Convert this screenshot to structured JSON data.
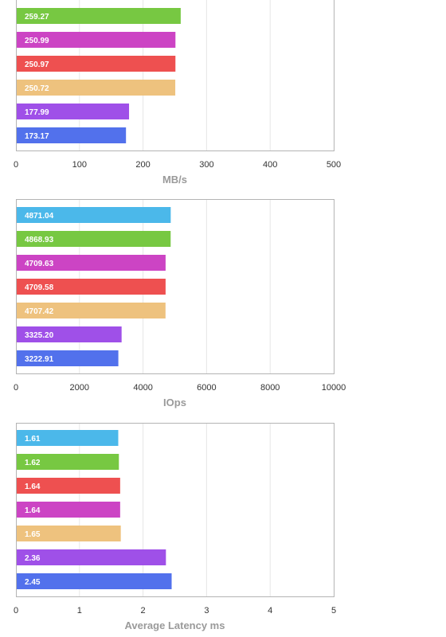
{
  "chart_data": [
    {
      "type": "bar",
      "orientation": "horizontal",
      "xlabel": "MB/s",
      "xlim": [
        0,
        500
      ],
      "xticks": [
        "0",
        "100",
        "200",
        "300",
        "400",
        "500"
      ],
      "grid": true,
      "bars": [
        {
          "label": "259.27",
          "value": 259.27,
          "color": "#77c842"
        },
        {
          "label": "250.99",
          "value": 250.99,
          "color": "#cc44c4"
        },
        {
          "label": "250.97",
          "value": 250.97,
          "color": "#ee5050"
        },
        {
          "label": "250.72",
          "value": 250.72,
          "color": "#eec27e"
        },
        {
          "label": "177.99",
          "value": 177.99,
          "color": "#9f50e8"
        },
        {
          "label": "173.17",
          "value": 173.17,
          "color": "#5271ec"
        }
      ]
    },
    {
      "type": "bar",
      "orientation": "horizontal",
      "xlabel": "IOps",
      "xlim": [
        0,
        10000
      ],
      "xticks": [
        "0",
        "2000",
        "4000",
        "6000",
        "8000",
        "10000"
      ],
      "grid": true,
      "bars": [
        {
          "label": "4871.04",
          "value": 4871.04,
          "color": "#4bb8ea"
        },
        {
          "label": "4868.93",
          "value": 4868.93,
          "color": "#77c842"
        },
        {
          "label": "4709.63",
          "value": 4709.63,
          "color": "#cc44c4"
        },
        {
          "label": "4709.58",
          "value": 4709.58,
          "color": "#ee5050"
        },
        {
          "label": "4707.42",
          "value": 4707.42,
          "color": "#eec27e"
        },
        {
          "label": "3325.20",
          "value": 3325.2,
          "color": "#9f50e8"
        },
        {
          "label": "3222.91",
          "value": 3222.91,
          "color": "#5271ec"
        }
      ]
    },
    {
      "type": "bar",
      "orientation": "horizontal",
      "xlabel": "Average Latency ms",
      "xlim": [
        0,
        5
      ],
      "xticks": [
        "0",
        "1",
        "2",
        "3",
        "4",
        "5"
      ],
      "grid": true,
      "bars": [
        {
          "label": "1.61",
          "value": 1.61,
          "color": "#4bb8ea"
        },
        {
          "label": "1.62",
          "value": 1.62,
          "color": "#77c842"
        },
        {
          "label": "1.64",
          "value": 1.64,
          "color": "#ee5050"
        },
        {
          "label": "1.64",
          "value": 1.64,
          "color": "#cc44c4"
        },
        {
          "label": "1.65",
          "value": 1.65,
          "color": "#eec27e"
        },
        {
          "label": "2.36",
          "value": 2.36,
          "color": "#9f50e8"
        },
        {
          "label": "2.45",
          "value": 2.45,
          "color": "#5271ec"
        }
      ]
    }
  ]
}
